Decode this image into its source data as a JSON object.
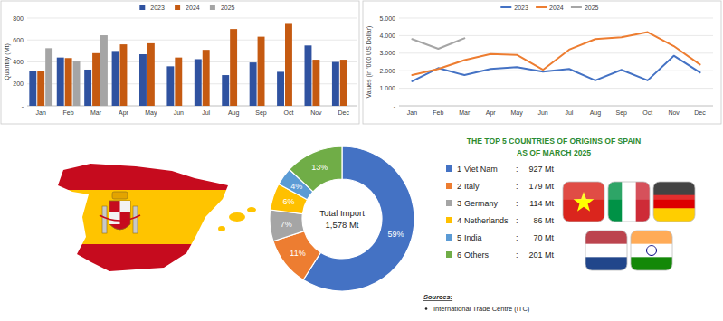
{
  "chart_data": [
    {
      "type": "bar",
      "y_label": "Quantity (Mt)",
      "categories": [
        "Jan",
        "Feb",
        "Mar",
        "Apr",
        "May",
        "Jun",
        "Jul",
        "Aug",
        "Sep",
        "Oct",
        "Nov",
        "Dec"
      ],
      "series": [
        {
          "name": "2023",
          "color": "#2f52a0",
          "values": [
            320,
            440,
            330,
            500,
            470,
            360,
            425,
            280,
            395,
            310,
            550,
            400
          ]
        },
        {
          "name": "2024",
          "color": "#c55a11",
          "values": [
            320,
            435,
            480,
            560,
            570,
            440,
            510,
            700,
            630,
            755,
            420,
            420
          ]
        },
        {
          "name": "2025",
          "color": "#a5a5a5",
          "values": [
            525,
            410,
            643,
            null,
            null,
            null,
            null,
            null,
            null,
            null,
            null,
            null
          ]
        }
      ],
      "ylim": [
        0,
        800
      ],
      "yticks": [
        {
          "value": 0,
          "label": "-"
        },
        200,
        400,
        600,
        800
      ],
      "grid": true,
      "legend": "top"
    },
    {
      "type": "line",
      "y_label": "Values (in '000 US Dollar)",
      "categories": [
        "Jan",
        "Feb",
        "Mar",
        "Apr",
        "May",
        "Jun",
        "Jul",
        "Aug",
        "Sep",
        "Oct",
        "Nov",
        "Dec"
      ],
      "series": [
        {
          "name": "2023",
          "color": "#4472c4",
          "values": [
            1400,
            2150,
            1750,
            2100,
            2200,
            1950,
            2100,
            1450,
            2050,
            1450,
            2850,
            1900
          ]
        },
        {
          "name": "2024",
          "color": "#ed7d31",
          "values": [
            1750,
            2100,
            2600,
            2950,
            2900,
            2050,
            3200,
            3800,
            3900,
            4200,
            3400,
            2350
          ]
        },
        {
          "name": "2025",
          "color": "#a5a5a5",
          "values": [
            3800,
            3250,
            3850,
            null,
            null,
            null,
            null,
            null,
            null,
            null,
            null,
            null
          ]
        }
      ],
      "ylim": [
        0,
        5000
      ],
      "yticks": [
        {
          "value": 0,
          "label": "-"
        },
        {
          "value": 1000,
          "label": "1.000"
        },
        {
          "value": 2000,
          "label": "2.000"
        },
        {
          "value": 3000,
          "label": "3.000"
        },
        {
          "value": 4000,
          "label": "4.000"
        },
        {
          "value": 5000,
          "label": "5.000"
        }
      ],
      "grid": true,
      "legend": "top"
    },
    {
      "type": "pie",
      "title": "THE TOP 5 COUNTRIES OF ORIGINS OF SPAIN",
      "subtitle": "AS OF MARCH 2025",
      "categories": [
        "Viet Nam",
        "Italy",
        "Germany",
        "Netherlands",
        "India",
        "Others"
      ],
      "values": [
        59,
        11,
        7,
        6,
        4,
        13
      ],
      "value_labels": [
        "59%",
        "11%",
        "7%",
        "6%",
        "4%",
        "13%"
      ],
      "colors": [
        "#4472c4",
        "#ed7d31",
        "#a5a5a5",
        "#ffc000",
        "#5b9bd5",
        "#70ad47"
      ],
      "data_labels": true,
      "annotations": [
        "Total Import",
        "1,578 Mt"
      ],
      "ranks": [
        1,
        2,
        3,
        4,
        5,
        6
      ],
      "separator": ":",
      "quantity_labels": [
        "927 Mt",
        "179 Mt",
        "114 Mt",
        "86 Mt",
        "70 Mt",
        "201 Mt"
      ]
    }
  ],
  "sources": {
    "heading": "Sources:",
    "items": [
      "International Trade Centre (ITC)"
    ]
  }
}
